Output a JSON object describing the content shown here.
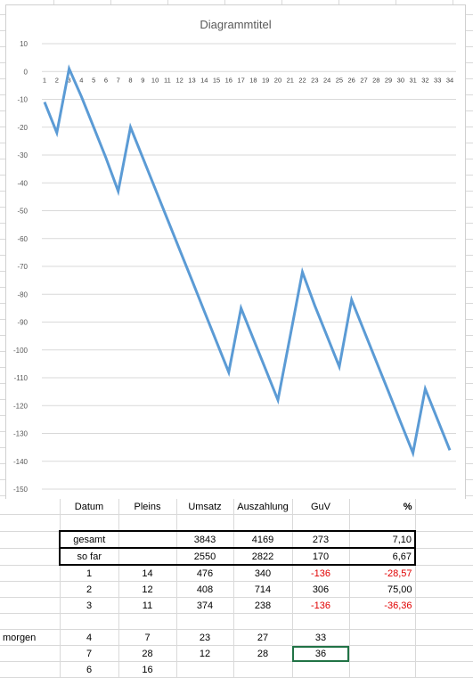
{
  "chart_data": {
    "type": "line",
    "title": "Diagrammtitel",
    "x": [
      1,
      2,
      3,
      4,
      5,
      6,
      7,
      8,
      9,
      10,
      11,
      12,
      13,
      14,
      15,
      16,
      17,
      18,
      19,
      20,
      21,
      22,
      23,
      24,
      25,
      26,
      27,
      28,
      29,
      30,
      31,
      32,
      33,
      34
    ],
    "series": [
      {
        "values": [
          -11,
          -22,
          1,
          -9,
          -20,
          -31,
          -43,
          -20,
          -31,
          -42,
          -53,
          -64,
          -75,
          -86,
          -97,
          -108,
          -85,
          -96,
          -107,
          -118,
          -95,
          -72,
          -84,
          -95,
          -106,
          -82,
          -93,
          -104,
          -115,
          -126,
          -137,
          -114,
          -125,
          -136
        ]
      }
    ],
    "ylim": [
      -150,
      10
    ],
    "yticks": [
      "10",
      "0",
      "-10",
      "-20",
      "-30",
      "-40",
      "-50",
      "-60",
      "-70",
      "-80",
      "-90",
      "-100",
      "-110",
      "-120",
      "-130",
      "-140",
      "-150"
    ],
    "xticks": [
      "1",
      "2",
      "3",
      "4",
      "5",
      "6",
      "7",
      "8",
      "9",
      "10",
      "11",
      "12",
      "13",
      "14",
      "15",
      "16",
      "17",
      "18",
      "19",
      "20",
      "21",
      "22",
      "23",
      "24",
      "25",
      "26",
      "27",
      "28",
      "29",
      "30",
      "31",
      "32",
      "33",
      "34"
    ],
    "line_color": "#5b9bd5",
    "grid": true
  },
  "table": {
    "headers": [
      "Datum",
      "Pleins",
      "Umsatz",
      "Auszahlung",
      "GuV",
      "%"
    ],
    "gesamt": {
      "label": "gesamt",
      "umsatz": "3843",
      "auszahlung": "4169",
      "guv": "273",
      "pct": "7,10"
    },
    "sofar": {
      "label": "so far",
      "umsatz": "2550",
      "auszahlung": "2822",
      "guv": "170",
      "pct": "6,67"
    },
    "rows": [
      {
        "datum": "1",
        "pleins": "14",
        "umsatz": "476",
        "auszahlung": "340",
        "guv": "-136",
        "pct": "-28,57"
      },
      {
        "datum": "2",
        "pleins": "12",
        "umsatz": "408",
        "auszahlung": "714",
        "guv": "306",
        "pct": "75,00"
      },
      {
        "datum": "3",
        "pleins": "11",
        "umsatz": "374",
        "auszahlung": "238",
        "guv": "-136",
        "pct": "-36,36"
      }
    ],
    "morgen_label": "morgen",
    "extra": [
      {
        "datum": "4",
        "pleins": "7",
        "umsatz": "23",
        "auszahlung": "27",
        "guv": "33"
      },
      {
        "datum": "7",
        "pleins": "28",
        "umsatz": "12",
        "auszahlung": "28",
        "guv": "36"
      },
      {
        "datum": "6",
        "pleins": "16"
      }
    ]
  },
  "colors": {
    "negative": "#e00000",
    "selection": "#217346"
  }
}
